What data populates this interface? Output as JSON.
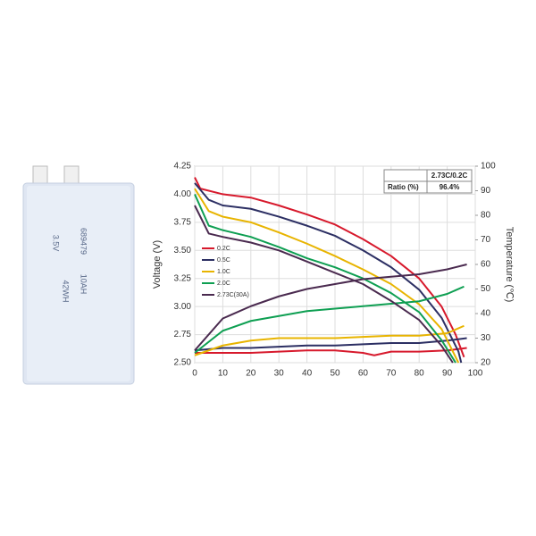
{
  "battery": {
    "labels": [
      "689479",
      "10AH",
      "3.5V",
      "42WH"
    ]
  },
  "chart_data": {
    "type": "line",
    "ylabel": "Voltage (V)",
    "y2label": "Temperature (℃)",
    "xlim": [
      0,
      100
    ],
    "xticks": [
      0,
      10,
      20,
      30,
      40,
      50,
      60,
      70,
      80,
      90,
      100
    ],
    "ylim": [
      2.5,
      4.25
    ],
    "yticks": [
      {
        "value": 2.5,
        "label": "2.50"
      },
      2.75,
      {
        "value": 3,
        "label": "3.00"
      },
      3.25,
      {
        "value": 3.5,
        "label": "3.50"
      },
      3.75,
      {
        "value": 4,
        "label": "4.00"
      },
      4.25
    ],
    "y2lim": [
      20,
      100
    ],
    "y2ticks": [
      20,
      30,
      40,
      50,
      60,
      70,
      80,
      90,
      100
    ],
    "grid": true,
    "series": [
      {
        "name": "0.2C",
        "color": "#d7192c",
        "voltage": {
          "x": [
            0,
            2,
            10,
            20,
            30,
            40,
            50,
            60,
            70,
            80,
            88,
            93,
            96
          ],
          "values": [
            4.15,
            4.05,
            4.0,
            3.97,
            3.9,
            3.82,
            3.73,
            3.6,
            3.45,
            3.25,
            3.0,
            2.75,
            2.55
          ]
        },
        "temperature": {
          "x": [
            0,
            10,
            20,
            30,
            40,
            50,
            60,
            64,
            70,
            80,
            90,
            97
          ],
          "values": [
            24,
            24,
            24,
            24.5,
            25,
            25,
            24,
            23,
            24.5,
            24.5,
            25,
            26
          ]
        }
      },
      {
        "name": "0.5C",
        "color": "#2c2f63",
        "voltage": {
          "x": [
            0,
            5,
            10,
            20,
            30,
            40,
            50,
            60,
            70,
            80,
            88,
            94,
            95
          ],
          "values": [
            4.1,
            3.95,
            3.9,
            3.87,
            3.8,
            3.72,
            3.63,
            3.5,
            3.35,
            3.15,
            2.9,
            2.6,
            2.5
          ]
        },
        "temperature": {
          "x": [
            0,
            10,
            20,
            30,
            40,
            50,
            60,
            70,
            80,
            90,
            97
          ],
          "values": [
            25,
            26,
            26,
            26.5,
            27,
            27,
            27.5,
            28,
            28,
            29,
            30
          ]
        }
      },
      {
        "name": "1.0C",
        "color": "#e8b400",
        "voltage": {
          "x": [
            0,
            5,
            10,
            20,
            30,
            40,
            50,
            60,
            70,
            80,
            88,
            94
          ],
          "values": [
            4.05,
            3.85,
            3.8,
            3.75,
            3.66,
            3.56,
            3.45,
            3.33,
            3.2,
            3.02,
            2.8,
            2.5
          ]
        },
        "temperature": {
          "x": [
            0,
            10,
            20,
            30,
            40,
            50,
            60,
            70,
            80,
            90,
            96
          ],
          "values": [
            23,
            27,
            29,
            30,
            30,
            30,
            30.5,
            31,
            31,
            32,
            35
          ]
        }
      },
      {
        "name": "2.0C",
        "color": "#0e9f52",
        "voltage": {
          "x": [
            0,
            5,
            10,
            20,
            30,
            40,
            50,
            60,
            70,
            80,
            88,
            93
          ],
          "values": [
            4.0,
            3.72,
            3.68,
            3.62,
            3.53,
            3.43,
            3.35,
            3.25,
            3.12,
            2.95,
            2.7,
            2.5
          ]
        },
        "temperature": {
          "x": [
            0,
            10,
            20,
            30,
            40,
            50,
            60,
            70,
            80,
            90,
            96
          ],
          "values": [
            24,
            33,
            37,
            39,
            41,
            42,
            43,
            44,
            45,
            48,
            51
          ]
        }
      },
      {
        "name": "2.73C(30A)",
        "color": "#4a2a4f",
        "voltage": {
          "x": [
            0,
            5,
            10,
            20,
            30,
            40,
            50,
            60,
            70,
            80,
            88,
            92
          ],
          "values": [
            3.9,
            3.65,
            3.62,
            3.57,
            3.5,
            3.4,
            3.3,
            3.2,
            3.05,
            2.88,
            2.65,
            2.5
          ]
        },
        "temperature": {
          "x": [
            0,
            10,
            20,
            30,
            40,
            50,
            60,
            70,
            80,
            90,
            97
          ],
          "values": [
            25,
            38,
            43,
            47,
            50,
            52,
            54,
            55,
            56,
            58,
            60
          ]
        }
      }
    ],
    "table": {
      "header": "2.73C/0.2C",
      "rows": [
        [
          "Ratio (%)",
          "96.4%"
        ]
      ]
    }
  }
}
